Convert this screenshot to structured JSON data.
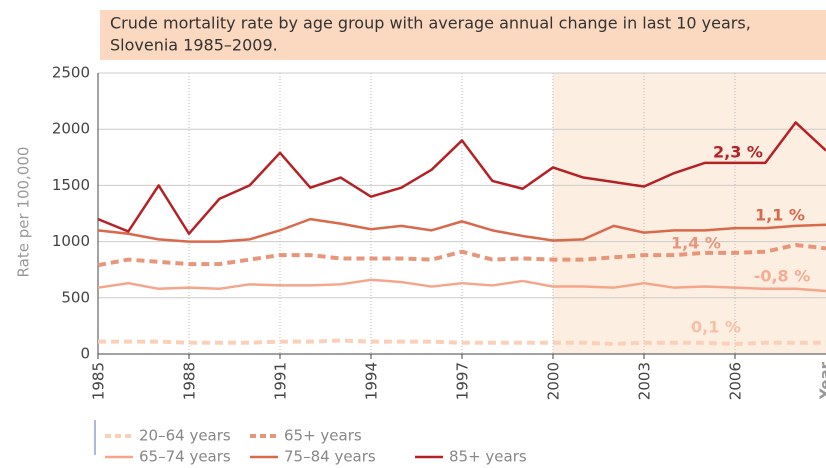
{
  "chart_data": {
    "type": "line",
    "title": [
      "Crude mortality rate by age group with average annual change in last 10 years,",
      "Slovenia 1985–2009."
    ],
    "x_label": "Year",
    "y_label": "Rate per 100,000",
    "x": [
      1985,
      1986,
      1987,
      1988,
      1989,
      1990,
      1991,
      1992,
      1993,
      1994,
      1995,
      1996,
      1997,
      1998,
      1999,
      2000,
      2001,
      2002,
      2003,
      2004,
      2005,
      2006,
      2007,
      2008,
      2009
    ],
    "xlim": [
      1985,
      2009
    ],
    "xticks": [
      1985,
      1988,
      1991,
      1994,
      1997,
      2000,
      2003,
      2006
    ],
    "ylim": [
      0,
      2500
    ],
    "yticks": [
      0,
      500,
      1000,
      1500,
      2000,
      2500
    ],
    "grid": true,
    "highlight_from": 2000,
    "series": [
      {
        "name": "20–64 years",
        "color": "#fbd0b8",
        "dashed": true,
        "values": [
          110,
          110,
          110,
          100,
          100,
          100,
          110,
          110,
          120,
          110,
          110,
          110,
          100,
          100,
          100,
          100,
          100,
          90,
          100,
          100,
          100,
          90,
          100,
          100,
          100
        ]
      },
      {
        "name": "65+ years",
        "color": "#e8967a",
        "dashed": true,
        "values": [
          790,
          840,
          820,
          800,
          800,
          840,
          880,
          880,
          850,
          850,
          850,
          840,
          910,
          840,
          850,
          840,
          840,
          860,
          880,
          880,
          900,
          900,
          910,
          970,
          940
        ]
      },
      {
        "name": "65–74 years",
        "color": "#f4a58a",
        "dashed": false,
        "values": [
          590,
          630,
          580,
          590,
          580,
          620,
          610,
          610,
          620,
          660,
          640,
          600,
          630,
          610,
          650,
          600,
          600,
          590,
          630,
          590,
          600,
          590,
          580,
          580,
          560
        ]
      },
      {
        "name": "75–84 years",
        "color": "#d9694b",
        "dashed": false,
        "values": [
          1100,
          1070,
          1020,
          1000,
          1000,
          1020,
          1100,
          1200,
          1160,
          1110,
          1140,
          1100,
          1180,
          1100,
          1050,
          1010,
          1020,
          1140,
          1080,
          1100,
          1100,
          1120,
          1120,
          1140,
          1150
        ]
      },
      {
        "name": "85+ years",
        "color": "#b52225",
        "dashed": false,
        "values": [
          1200,
          1090,
          1500,
          1070,
          1380,
          1500,
          1790,
          1480,
          1570,
          1400,
          1480,
          1640,
          1900,
          1540,
          1470,
          1660,
          1570,
          1530,
          1490,
          1610,
          1700,
          1700,
          1700,
          2060,
          1810
        ]
      }
    ],
    "annotations": [
      {
        "text": "0,1 %",
        "color": "#f7bfa6"
      },
      {
        "text": "1,4 %",
        "color": "#e8967a"
      },
      {
        "text": "-0,8 %",
        "color": "#f4ad92"
      },
      {
        "text": "1,1 %",
        "color": "#d9694b"
      },
      {
        "text": "2,3 %",
        "color": "#b52225"
      }
    ]
  }
}
